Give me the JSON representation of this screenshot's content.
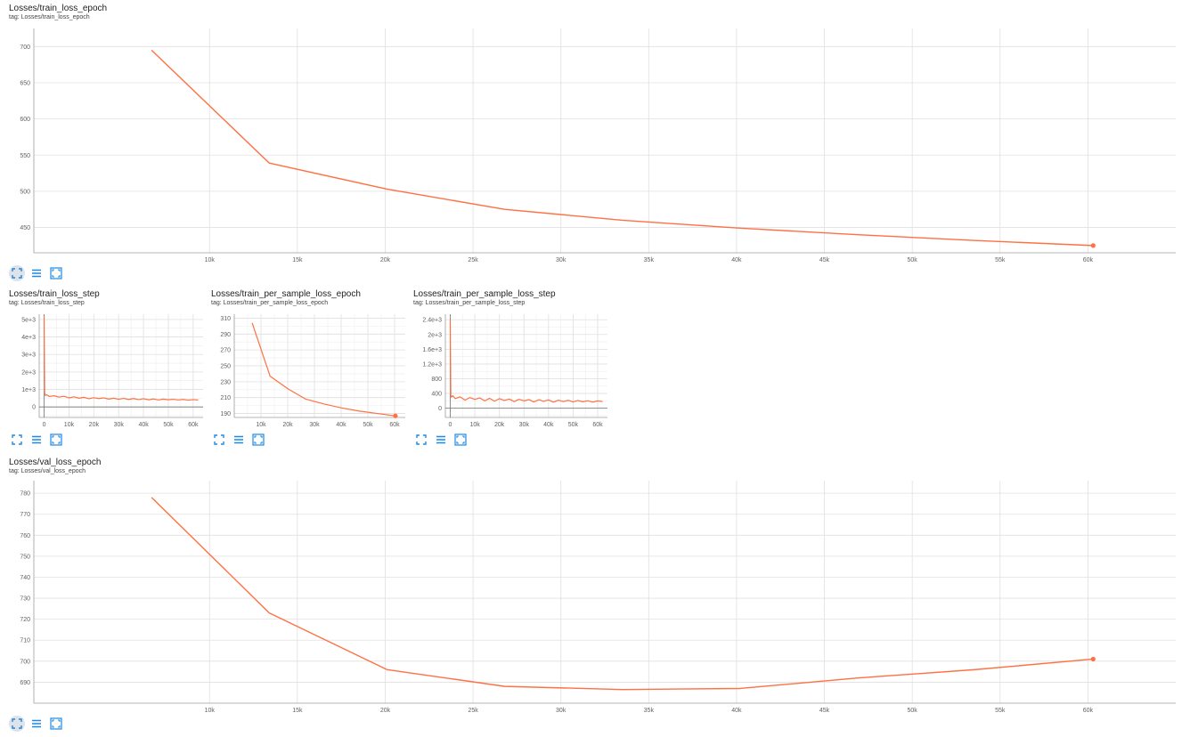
{
  "colors": {
    "line": "#ff7043",
    "grid": "#e0e0e0",
    "axis": "#9e9e9e",
    "icon": "#1e88e5"
  },
  "toolbar_icons": [
    "fit-to-screen-icon",
    "toggle-log-scale-icon",
    "fit-domain-icon"
  ],
  "cards": [
    {
      "title": "Losses/train_loss_epoch",
      "tag": "tag: Losses/train_loss_epoch"
    },
    {
      "title": "Losses/train_loss_step",
      "tag": "tag: Losses/train_loss_step"
    },
    {
      "title": "Losses/train_per_sample_loss_epoch",
      "tag": "tag: Losses/train_per_sample_loss_epoch"
    },
    {
      "title": "Losses/train_per_sample_loss_step",
      "tag": "tag: Losses/train_per_sample_loss_step"
    },
    {
      "title": "Losses/val_loss_epoch",
      "tag": "tag: Losses/val_loss_epoch"
    }
  ],
  "chart_data": [
    {
      "type": "line",
      "title": "Losses/train_loss_epoch",
      "xlim": [
        0,
        65000
      ],
      "ylim": [
        415,
        725
      ],
      "xticks": [
        10000,
        15000,
        20000,
        25000,
        30000,
        35000,
        40000,
        45000,
        50000,
        55000,
        60000
      ],
      "xtick_labels": [
        "10k",
        "15k",
        "20k",
        "25k",
        "30k",
        "35k",
        "40k",
        "45k",
        "50k",
        "55k",
        "60k"
      ],
      "yticks": [
        450,
        500,
        550,
        600,
        650,
        700
      ],
      "ytick_labels": [
        "450",
        "500",
        "550",
        "600",
        "650",
        "700"
      ],
      "grid": true,
      "endpoint_marker": true,
      "x": [
        6700,
        13400,
        20100,
        26800,
        33500,
        40200,
        46900,
        53600,
        60300
      ],
      "values": [
        695,
        539,
        503,
        475,
        460,
        449,
        440,
        432,
        425
      ]
    },
    {
      "type": "line",
      "title": "Losses/train_loss_step",
      "xlim": [
        -2000,
        64000
      ],
      "ylim": [
        -600,
        5300
      ],
      "xticks": [
        0,
        10000,
        20000,
        30000,
        40000,
        50000,
        60000
      ],
      "xtick_labels": [
        "0",
        "10k",
        "20k",
        "30k",
        "40k",
        "50k",
        "60k"
      ],
      "yticks": [
        0,
        1000,
        2000,
        3000,
        4000,
        5000
      ],
      "ytick_labels": [
        "0",
        "1e+3",
        "2e+3",
        "3e+3",
        "4e+3",
        "5e+3"
      ],
      "grid": true,
      "endpoint_marker": false,
      "x": [
        0,
        200,
        500,
        1000,
        2000,
        4000,
        6000,
        8000,
        10000,
        12000,
        14000,
        16000,
        18000,
        20000,
        22000,
        24000,
        26000,
        28000,
        30000,
        32000,
        34000,
        36000,
        38000,
        40000,
        42000,
        44000,
        46000,
        48000,
        50000,
        52000,
        54000,
        56000,
        58000,
        60000,
        62000
      ],
      "values": [
        5200,
        800,
        650,
        700,
        600,
        640,
        560,
        610,
        520,
        580,
        500,
        550,
        470,
        530,
        480,
        520,
        450,
        500,
        440,
        490,
        430,
        480,
        420,
        470,
        410,
        460,
        400,
        450,
        410,
        440,
        400,
        430,
        390,
        420,
        400
      ]
    },
    {
      "type": "line",
      "title": "Losses/train_per_sample_loss_epoch",
      "xlim": [
        0,
        64000
      ],
      "ylim": [
        185,
        315
      ],
      "xticks": [
        10000,
        20000,
        30000,
        40000,
        50000,
        60000
      ],
      "xtick_labels": [
        "10k",
        "20k",
        "30k",
        "40k",
        "50k",
        "60k"
      ],
      "yticks": [
        190,
        210,
        230,
        250,
        270,
        290,
        310
      ],
      "ytick_labels": [
        "190",
        "210",
        "230",
        "250",
        "270",
        "290",
        "310"
      ],
      "grid": true,
      "endpoint_marker": true,
      "x": [
        6700,
        13400,
        20100,
        26800,
        33500,
        40200,
        46900,
        53600,
        60300
      ],
      "values": [
        304,
        237,
        221,
        208,
        202,
        197,
        193,
        190,
        187
      ]
    },
    {
      "type": "line",
      "title": "Losses/train_per_sample_loss_step",
      "xlim": [
        -2000,
        64000
      ],
      "ylim": [
        -250,
        2550
      ],
      "xticks": [
        0,
        10000,
        20000,
        30000,
        40000,
        50000,
        60000
      ],
      "xtick_labels": [
        "0",
        "10k",
        "20k",
        "30k",
        "40k",
        "50k",
        "60k"
      ],
      "yticks": [
        0,
        400,
        800,
        1200,
        1600,
        2000,
        2400
      ],
      "ytick_labels": [
        "0",
        "400",
        "800",
        "1.2e+3",
        "1.6e+3",
        "2e+3",
        "2.4e+3"
      ],
      "grid": true,
      "endpoint_marker": false,
      "x": [
        0,
        200,
        500,
        1000,
        2000,
        4000,
        6000,
        8000,
        10000,
        12000,
        14000,
        16000,
        18000,
        20000,
        22000,
        24000,
        26000,
        28000,
        30000,
        32000,
        34000,
        36000,
        38000,
        40000,
        42000,
        44000,
        46000,
        48000,
        50000,
        52000,
        54000,
        56000,
        58000,
        60000,
        62000
      ],
      "values": [
        2400,
        350,
        300,
        340,
        260,
        310,
        220,
        290,
        240,
        280,
        200,
        270,
        190,
        260,
        210,
        250,
        180,
        240,
        200,
        235,
        170,
        230,
        190,
        225,
        165,
        220,
        180,
        215,
        170,
        210,
        175,
        205,
        165,
        200,
        180
      ]
    },
    {
      "type": "line",
      "title": "Losses/val_loss_epoch",
      "xlim": [
        0,
        65000
      ],
      "ylim": [
        680,
        786
      ],
      "xticks": [
        10000,
        15000,
        20000,
        25000,
        30000,
        35000,
        40000,
        45000,
        50000,
        55000,
        60000
      ],
      "xtick_labels": [
        "10k",
        "15k",
        "20k",
        "25k",
        "30k",
        "35k",
        "40k",
        "45k",
        "50k",
        "55k",
        "60k"
      ],
      "yticks": [
        690,
        700,
        710,
        720,
        730,
        740,
        750,
        760,
        770,
        780
      ],
      "ytick_labels": [
        "690",
        "700",
        "710",
        "720",
        "730",
        "740",
        "750",
        "760",
        "770",
        "780"
      ],
      "grid": true,
      "endpoint_marker": true,
      "x": [
        6700,
        13400,
        20100,
        26800,
        33500,
        40200,
        46900,
        53600,
        60300
      ],
      "values": [
        778,
        723,
        696,
        688,
        686.5,
        687,
        692,
        696,
        701
      ]
    }
  ]
}
